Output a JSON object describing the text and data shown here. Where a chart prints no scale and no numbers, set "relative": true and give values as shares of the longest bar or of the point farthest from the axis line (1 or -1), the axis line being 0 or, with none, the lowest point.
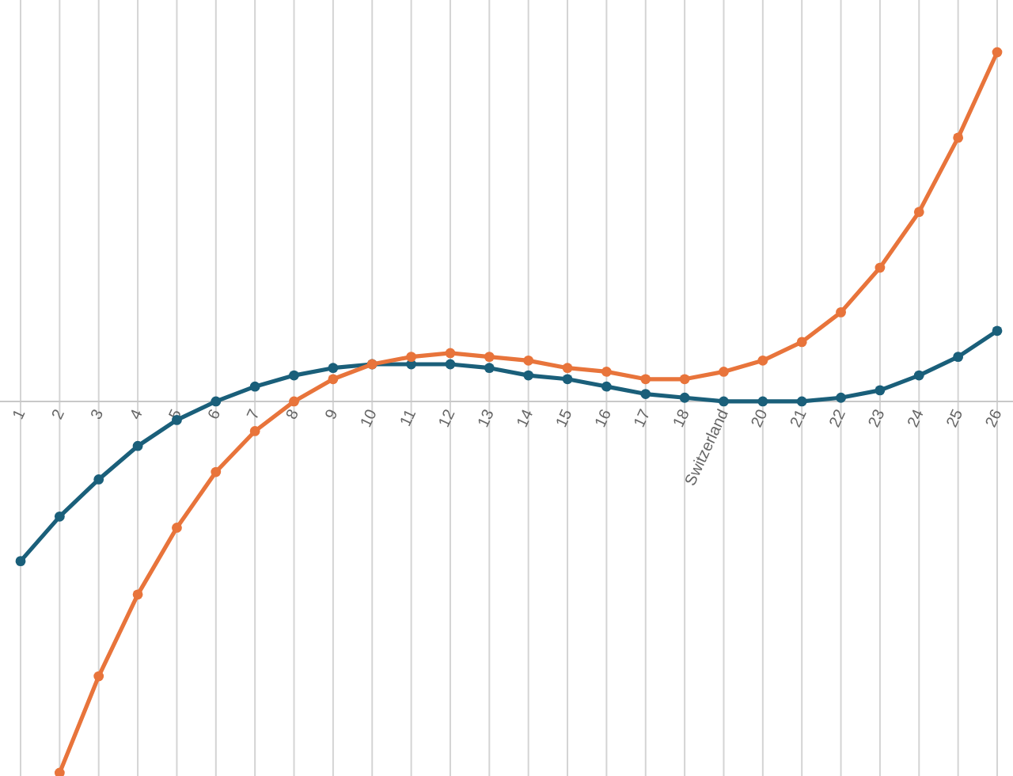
{
  "chart_data": {
    "type": "line",
    "relative": true,
    "categories": [
      "1",
      "2",
      "3",
      "4",
      "5",
      "6",
      "7",
      "8",
      "9",
      "10",
      "11",
      "12",
      "13",
      "14",
      "15",
      "16",
      "17",
      "18",
      "Switzerland",
      "20",
      "21",
      "22",
      "23",
      "24",
      "25",
      "26"
    ],
    "series": [
      {
        "color": "#1a5f7a",
        "values": [
          -0.43,
          -0.31,
          -0.21,
          -0.12,
          -0.05,
          0,
          0.04,
          0.07,
          0.09,
          0.1,
          0.1,
          0.1,
          0.09,
          0.07,
          0.06,
          0.04,
          0.02,
          0.01,
          0,
          0,
          0,
          0.01,
          0.03,
          0.07,
          0.12,
          0.19
        ]
      },
      {
        "color": "#e8743b",
        "values": [
          null,
          -1,
          -0.74,
          -0.52,
          -0.34,
          -0.19,
          -0.08,
          0,
          0.06,
          0.1,
          0.12,
          0.13,
          0.12,
          0.11,
          0.09,
          0.08,
          0.06,
          0.06,
          0.08,
          0.11,
          0.16,
          0.24,
          0.36,
          0.51,
          0.71,
          0.94
        ]
      }
    ],
    "grid": "x",
    "marker": "circle",
    "line_style": "solid"
  }
}
